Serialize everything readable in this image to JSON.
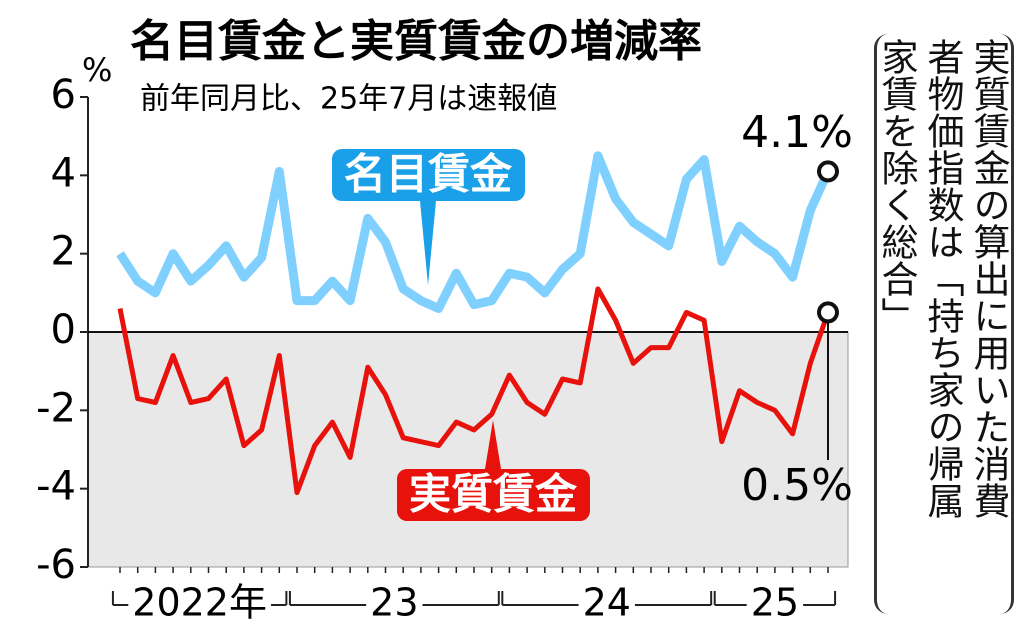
{
  "chart_data": {
    "type": "line",
    "title": "名目賃金と実質賃金の増減率",
    "subtitle": "前年同月比、25年7月は速報値",
    "y_unit": "%",
    "categories": [
      null,
      null,
      null,
      null,
      null,
      null,
      null,
      null,
      null,
      null,
      null,
      null,
      null,
      null,
      null,
      null,
      null,
      null,
      null,
      null,
      null,
      null,
      null,
      null,
      null,
      null,
      null,
      null,
      null,
      null,
      null,
      null,
      null,
      null,
      null,
      null,
      null,
      null,
      null,
      null,
      null
    ],
    "x_groups": [
      {
        "label": "2022年",
        "count": 10
      },
      {
        "label": "23",
        "count": 12
      },
      {
        "label": "24",
        "count": 12
      },
      {
        "label": "25",
        "count": 7
      }
    ],
    "series": [
      {
        "name": "名目賃金",
        "color": "#80d0ff",
        "label_color": "#1aa0e8",
        "values": [
          2.0,
          1.3,
          1.0,
          2.0,
          1.3,
          1.7,
          2.2,
          1.4,
          1.9,
          4.1,
          0.8,
          0.8,
          1.3,
          0.8,
          2.9,
          2.3,
          1.1,
          0.8,
          0.6,
          1.5,
          0.7,
          0.8,
          1.5,
          1.4,
          1.0,
          1.6,
          2.0,
          4.5,
          3.4,
          2.8,
          2.5,
          2.2,
          3.9,
          4.4,
          1.8,
          2.7,
          2.3,
          2.0,
          1.4,
          3.1,
          4.1
        ],
        "value_labels": [
          null,
          null,
          null,
          null,
          null,
          null,
          null,
          null,
          null,
          null,
          null,
          null,
          null,
          null,
          null,
          null,
          null,
          null,
          null,
          null,
          null,
          null,
          null,
          null,
          null,
          null,
          null,
          null,
          null,
          null,
          null,
          null,
          null,
          null,
          null,
          null,
          null,
          null,
          null,
          null,
          "4.1%"
        ]
      },
      {
        "name": "実質賃金",
        "color": "#e8120c",
        "label_color": "#e8120c",
        "values": [
          0.6,
          -1.7,
          -1.8,
          -0.6,
          -1.8,
          -1.7,
          -1.2,
          -2.9,
          -2.5,
          -0.6,
          -4.1,
          -2.9,
          -2.3,
          -3.2,
          -0.9,
          -1.6,
          -2.7,
          -2.8,
          -2.9,
          -2.3,
          -2.5,
          -2.1,
          -1.1,
          -1.8,
          -2.1,
          -1.2,
          -1.3,
          1.1,
          0.3,
          -0.8,
          -0.4,
          -0.4,
          0.5,
          0.3,
          -2.8,
          -1.5,
          -1.8,
          -2.0,
          -2.6,
          -0.8,
          0.5
        ],
        "value_labels": [
          null,
          null,
          null,
          null,
          null,
          null,
          null,
          null,
          null,
          null,
          null,
          null,
          null,
          null,
          null,
          null,
          null,
          null,
          null,
          null,
          null,
          null,
          null,
          null,
          null,
          null,
          null,
          null,
          null,
          null,
          null,
          null,
          null,
          null,
          null,
          null,
          null,
          null,
          null,
          null,
          "0.5%"
        ]
      }
    ],
    "ylim": [
      -6,
      6
    ],
    "yticks": [
      6,
      4,
      2,
      0,
      -2,
      -4,
      -6
    ],
    "note_lines": [
      "実質賃金の算出に用いた消費",
      "者物価指数は「持ち家の帰属",
      "家賃を除く総合」"
    ]
  }
}
